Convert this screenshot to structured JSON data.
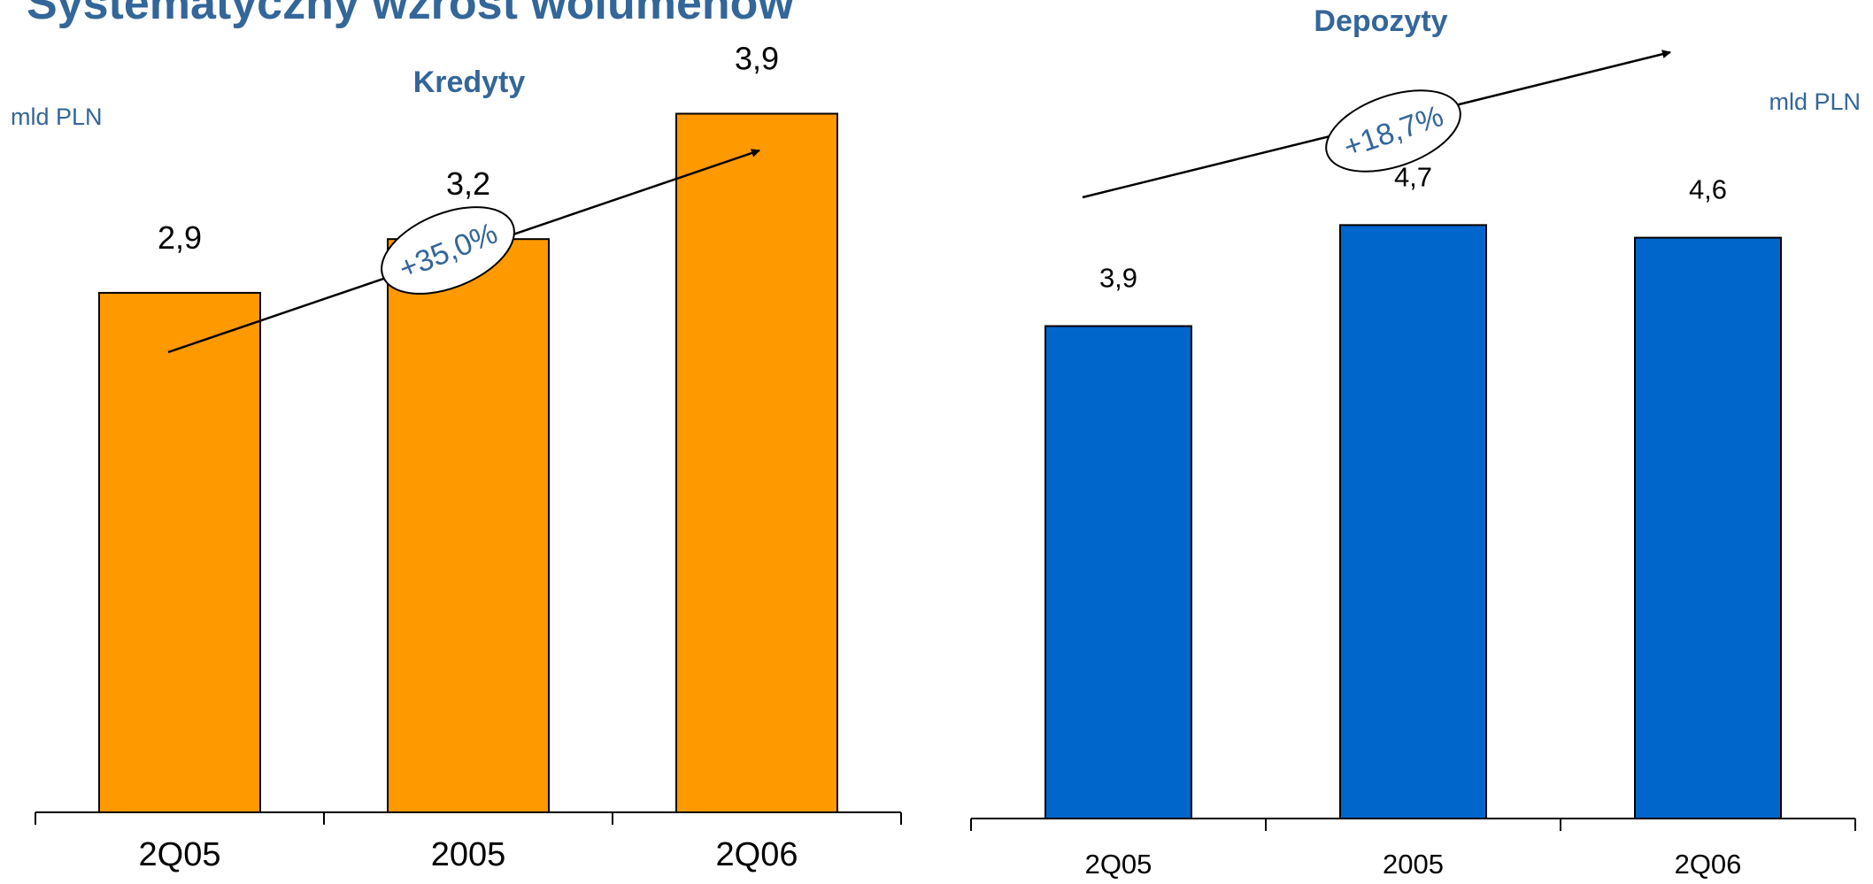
{
  "page_title": "Systematyczny wzrost wolumenów",
  "colors": {
    "accent_text": "#336699",
    "loans_bar": "#FF9900",
    "deposits_bar": "#0066CC",
    "annotation_text": "#336699"
  },
  "chart_data": [
    {
      "type": "bar",
      "title": "Kredyty",
      "unit_label": "mld PLN",
      "categories": [
        "2Q05",
        "2005",
        "2Q06"
      ],
      "values": [
        2.9,
        3.2,
        3.9
      ],
      "value_labels": [
        "2,9",
        "3,2",
        "3,9"
      ],
      "growth_label": "+35,0%",
      "ylim": [
        0,
        4.1
      ],
      "grid": false,
      "legend": "none"
    },
    {
      "type": "bar",
      "title": "Depozyty",
      "unit_label": "mld PLN",
      "categories": [
        "2Q05",
        "2005",
        "2Q06"
      ],
      "values": [
        3.9,
        4.7,
        4.6
      ],
      "value_labels": [
        "3,9",
        "4,7",
        "4,6"
      ],
      "growth_label": "+18,7%",
      "ylim": [
        0,
        5.2
      ],
      "grid": false,
      "legend": "none"
    }
  ]
}
